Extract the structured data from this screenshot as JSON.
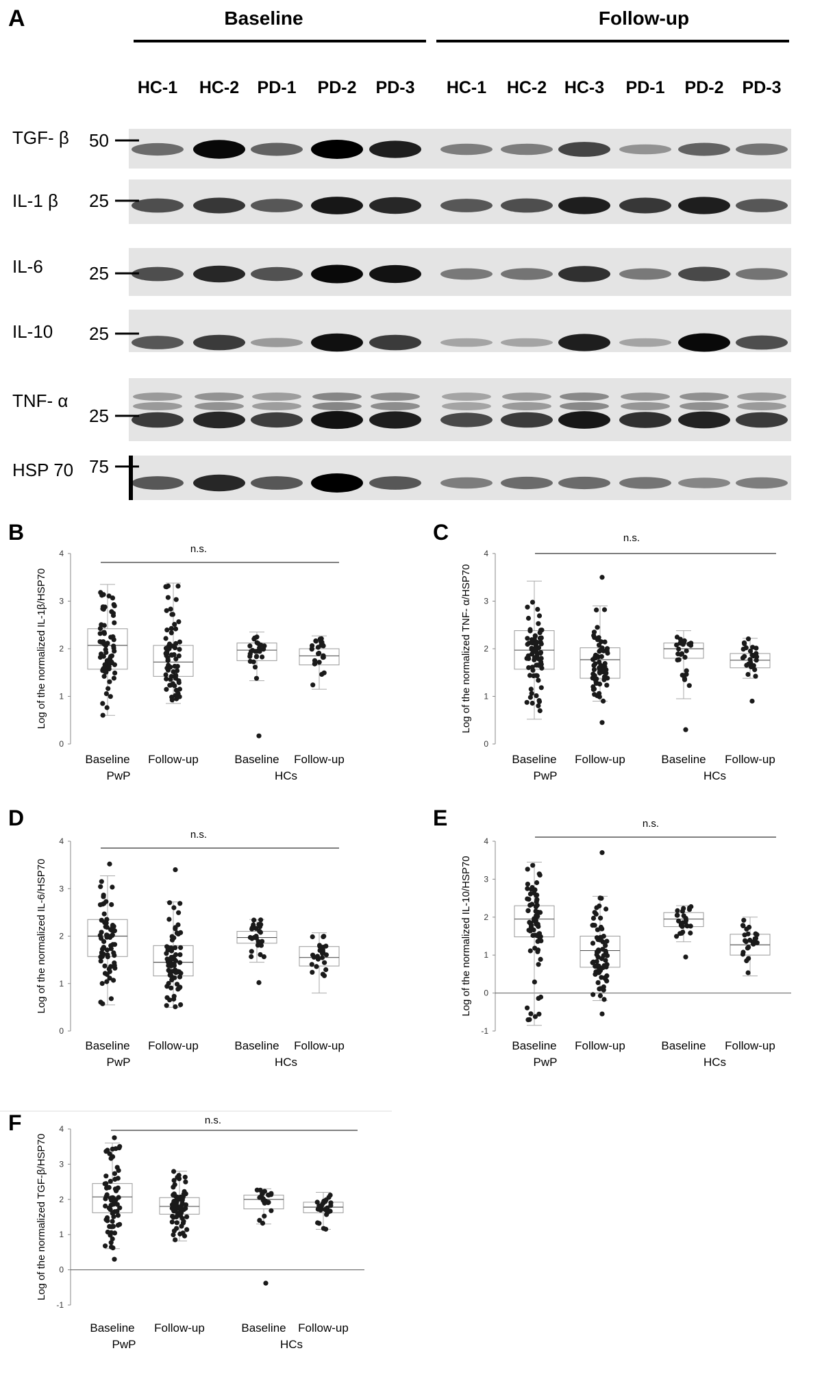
{
  "panel_a": {
    "letter": "A",
    "groups": [
      {
        "label": "Baseline",
        "lanes": [
          "HC-1",
          "HC-2",
          "PD-1",
          "PD-2",
          "PD-3"
        ]
      },
      {
        "label": "Follow-up",
        "lanes": [
          "HC-1",
          "HC-2",
          "HC-3",
          "PD-1",
          "PD-2",
          "PD-3"
        ]
      }
    ],
    "rows": [
      {
        "protein": "TGF- β",
        "marker": "50",
        "intensities": [
          0.45,
          0.97,
          0.5,
          1.0,
          0.85,
          0.35,
          0.35,
          0.65,
          0.25,
          0.5,
          0.4
        ]
      },
      {
        "protein": "IL-1 β",
        "marker": "25",
        "intensities": [
          0.6,
          0.72,
          0.55,
          0.88,
          0.8,
          0.55,
          0.6,
          0.85,
          0.72,
          0.85,
          0.55
        ]
      },
      {
        "protein": "IL-6",
        "marker": "25",
        "intensities": [
          0.6,
          0.8,
          0.58,
          0.95,
          0.9,
          0.38,
          0.4,
          0.75,
          0.38,
          0.62,
          0.4
        ]
      },
      {
        "protein": "IL-10",
        "marker": "25",
        "intensities": [
          0.55,
          0.7,
          0.2,
          0.92,
          0.7,
          0.15,
          0.15,
          0.85,
          0.15,
          0.95,
          0.6
        ]
      },
      {
        "protein": "TNF- α",
        "marker": "25",
        "intensities": [
          0.7,
          0.8,
          0.68,
          0.9,
          0.85,
          0.62,
          0.7,
          0.88,
          0.75,
          0.82,
          0.7
        ]
      },
      {
        "protein": "HSP 70",
        "marker": "75",
        "intensities": [
          0.55,
          0.8,
          0.55,
          1.0,
          0.55,
          0.35,
          0.45,
          0.45,
          0.4,
          0.3,
          0.35
        ]
      }
    ]
  },
  "chart_data": [
    {
      "panel": "B",
      "type": "box",
      "ylabel": "Log of the normalized IL-1β/HSP70",
      "ylim": [
        0,
        4
      ],
      "yticks": [
        0,
        1,
        2,
        3,
        4
      ],
      "categories": [
        "Baseline",
        "Follow-up",
        "Baseline",
        "Follow-up"
      ],
      "group_labels": [
        "PwP",
        "HCs"
      ],
      "annotation": "n.s.",
      "boxes": [
        {
          "min": 0.6,
          "q1": 1.57,
          "median": 2.07,
          "q3": 2.42,
          "max": 3.35,
          "outliers": []
        },
        {
          "min": 0.85,
          "q1": 1.42,
          "median": 1.72,
          "q3": 2.07,
          "max": 3.38,
          "outliers": []
        },
        {
          "min": 1.33,
          "q1": 1.75,
          "median": 1.97,
          "q3": 2.12,
          "max": 2.35,
          "outliers": [
            0.17
          ]
        },
        {
          "min": 1.15,
          "q1": 1.66,
          "median": 1.85,
          "q3": 2.0,
          "max": 2.27,
          "outliers": []
        }
      ]
    },
    {
      "panel": "C",
      "type": "box",
      "ylabel": "Log of the normalized TNF- α/HSP70",
      "ylim": [
        0,
        4
      ],
      "yticks": [
        0,
        1,
        2,
        3,
        4
      ],
      "categories": [
        "Baseline",
        "Follow-up",
        "Baseline",
        "Follow-up"
      ],
      "group_labels": [
        "PwP",
        "HCs"
      ],
      "annotation": "n.s.",
      "boxes": [
        {
          "min": 0.52,
          "q1": 1.57,
          "median": 1.97,
          "q3": 2.38,
          "max": 3.42,
          "outliers": []
        },
        {
          "min": 0.9,
          "q1": 1.38,
          "median": 1.77,
          "q3": 2.02,
          "max": 2.9,
          "outliers": [
            0.45,
            3.5
          ]
        },
        {
          "min": 0.95,
          "q1": 1.8,
          "median": 2.0,
          "q3": 2.12,
          "max": 2.38,
          "outliers": [
            0.3
          ]
        },
        {
          "min": 1.38,
          "q1": 1.6,
          "median": 1.76,
          "q3": 1.9,
          "max": 2.22,
          "outliers": [
            0.9
          ]
        }
      ]
    },
    {
      "panel": "D",
      "type": "box",
      "ylabel": "Log of the normalized IL-6/HSP70",
      "ylim": [
        0,
        4
      ],
      "yticks": [
        0,
        1,
        2,
        3,
        4
      ],
      "categories": [
        "Baseline",
        "Follow-up",
        "Baseline",
        "Follow-up"
      ],
      "group_labels": [
        "PwP",
        "HCs"
      ],
      "annotation": "n.s.",
      "boxes": [
        {
          "min": 0.55,
          "q1": 1.57,
          "median": 2.0,
          "q3": 2.35,
          "max": 3.27,
          "outliers": [
            3.52
          ]
        },
        {
          "min": 0.5,
          "q1": 1.16,
          "median": 1.45,
          "q3": 1.8,
          "max": 2.72,
          "outliers": [
            3.4
          ]
        },
        {
          "min": 1.45,
          "q1": 1.85,
          "median": 1.97,
          "q3": 2.1,
          "max": 2.35,
          "outliers": [
            1.02
          ]
        },
        {
          "min": 0.8,
          "q1": 1.37,
          "median": 1.55,
          "q3": 1.78,
          "max": 2.07,
          "outliers": []
        }
      ]
    },
    {
      "panel": "E",
      "type": "box",
      "ylabel": "Log of the normalized IL-10/HSP70",
      "ylim": [
        -1,
        4
      ],
      "yticks": [
        -1,
        0,
        1,
        2,
        3,
        4
      ],
      "categories": [
        "Baseline",
        "Follow-up",
        "Baseline",
        "Follow-up"
      ],
      "group_labels": [
        "PwP",
        "HCs"
      ],
      "annotation": "n.s.",
      "boxes": [
        {
          "min": -0.85,
          "q1": 1.48,
          "median": 1.95,
          "q3": 2.3,
          "max": 3.45,
          "outliers": []
        },
        {
          "min": -0.2,
          "q1": 0.68,
          "median": 1.12,
          "q3": 1.5,
          "max": 2.55,
          "outliers": [
            -0.55,
            3.7
          ]
        },
        {
          "min": 1.35,
          "q1": 1.75,
          "median": 1.95,
          "q3": 2.12,
          "max": 2.3,
          "outliers": [
            0.95
          ]
        },
        {
          "min": 0.45,
          "q1": 1.0,
          "median": 1.27,
          "q3": 1.55,
          "max": 2.0,
          "outliers": []
        }
      ]
    },
    {
      "panel": "F",
      "type": "box",
      "ylabel": "Log of the normalized TGF-β/HSP70",
      "ylim": [
        -1,
        4
      ],
      "yticks": [
        -1,
        0,
        1,
        2,
        3,
        4
      ],
      "categories": [
        "Baseline",
        "Follow-up",
        "Baseline",
        "Follow-up"
      ],
      "group_labels": [
        "PwP",
        "HCs"
      ],
      "annotation": "n.s.",
      "boxes": [
        {
          "min": 0.6,
          "q1": 1.62,
          "median": 2.07,
          "q3": 2.45,
          "max": 3.6,
          "outliers": [
            0.3,
            3.75
          ]
        },
        {
          "min": 0.82,
          "q1": 1.58,
          "median": 1.8,
          "q3": 2.05,
          "max": 2.8,
          "outliers": []
        },
        {
          "min": 1.3,
          "q1": 1.73,
          "median": 2.0,
          "q3": 2.12,
          "max": 2.3,
          "outliers": [
            -0.38
          ]
        },
        {
          "min": 1.15,
          "q1": 1.62,
          "median": 1.78,
          "q3": 1.92,
          "max": 2.2,
          "outliers": []
        }
      ]
    }
  ]
}
